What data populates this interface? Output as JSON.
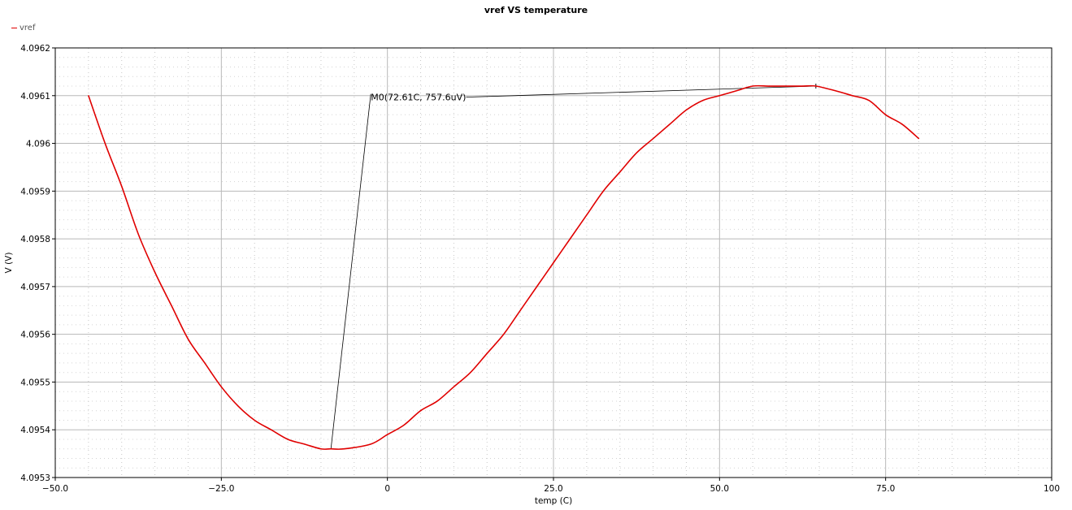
{
  "chart_data": {
    "type": "line",
    "title": "vref VS temperature",
    "xlabel": "temp (C)",
    "ylabel": "V (V)",
    "xlim": [
      -50,
      100
    ],
    "ylim": [
      4.0953,
      4.0962
    ],
    "x_ticks": [
      -50,
      -25,
      0,
      25,
      50,
      75,
      100
    ],
    "x_tick_labels": [
      "−50.0",
      "−25.0",
      "0",
      "25.0",
      "50.0",
      "75.0",
      "100"
    ],
    "y_ticks": [
      4.0953,
      4.0954,
      4.0955,
      4.0956,
      4.0957,
      4.0958,
      4.0959,
      4.096,
      4.0961,
      4.0962
    ],
    "y_tick_labels": [
      "4.0953",
      "4.0954",
      "4.0955",
      "4.0956",
      "4.0957",
      "4.0958",
      "4.0959",
      "4.096",
      "4.0961",
      "4.0962"
    ],
    "grid": true,
    "legend": "top-left",
    "series": [
      {
        "name": "vref",
        "color": "#e00000",
        "x": [
          -45,
          -42.5,
          -40,
          -37.5,
          -35,
          -32.5,
          -30,
          -27.5,
          -25,
          -22.5,
          -20,
          -17.5,
          -15,
          -12.5,
          -10,
          -8.5,
          -6.5,
          -2.5,
          0,
          2.5,
          5,
          7.5,
          10,
          12.5,
          15,
          17.5,
          20,
          22.5,
          25,
          27.5,
          30,
          32.5,
          35,
          37.5,
          40,
          42.5,
          45,
          47.5,
          50,
          52.5,
          55,
          57.5,
          60,
          62.5,
          64.5,
          67.5,
          70,
          72.5,
          75,
          77.5,
          80
        ],
        "y": [
          4.0961,
          4.096,
          4.09591,
          4.09581,
          4.09573,
          4.09566,
          4.09559,
          4.09554,
          4.09549,
          4.09545,
          4.09542,
          4.0954,
          4.09538,
          4.09537,
          4.09536,
          4.09536,
          4.09536,
          4.09537,
          4.09539,
          4.09541,
          4.09544,
          4.09546,
          4.09549,
          4.09552,
          4.09556,
          4.0956,
          4.09565,
          4.0957,
          4.09575,
          4.0958,
          4.09585,
          4.0959,
          4.09594,
          4.09598,
          4.09601,
          4.09604,
          4.09607,
          4.09609,
          4.0961,
          4.09611,
          4.09612,
          4.09612,
          4.09612,
          4.09612,
          4.09612,
          4.09611,
          4.0961,
          4.09609,
          4.09606,
          4.09604,
          4.09601
        ]
      }
    ],
    "markers": [
      {
        "label": "M0(72.61C, 757.6uV)",
        "text_anchor": {
          "x": -2.5,
          "y": 4.09609
        },
        "point_a": {
          "x": 64.5,
          "y": 4.09612
        },
        "point_b": {
          "x": -8.5,
          "y": 4.09536
        }
      }
    ]
  }
}
